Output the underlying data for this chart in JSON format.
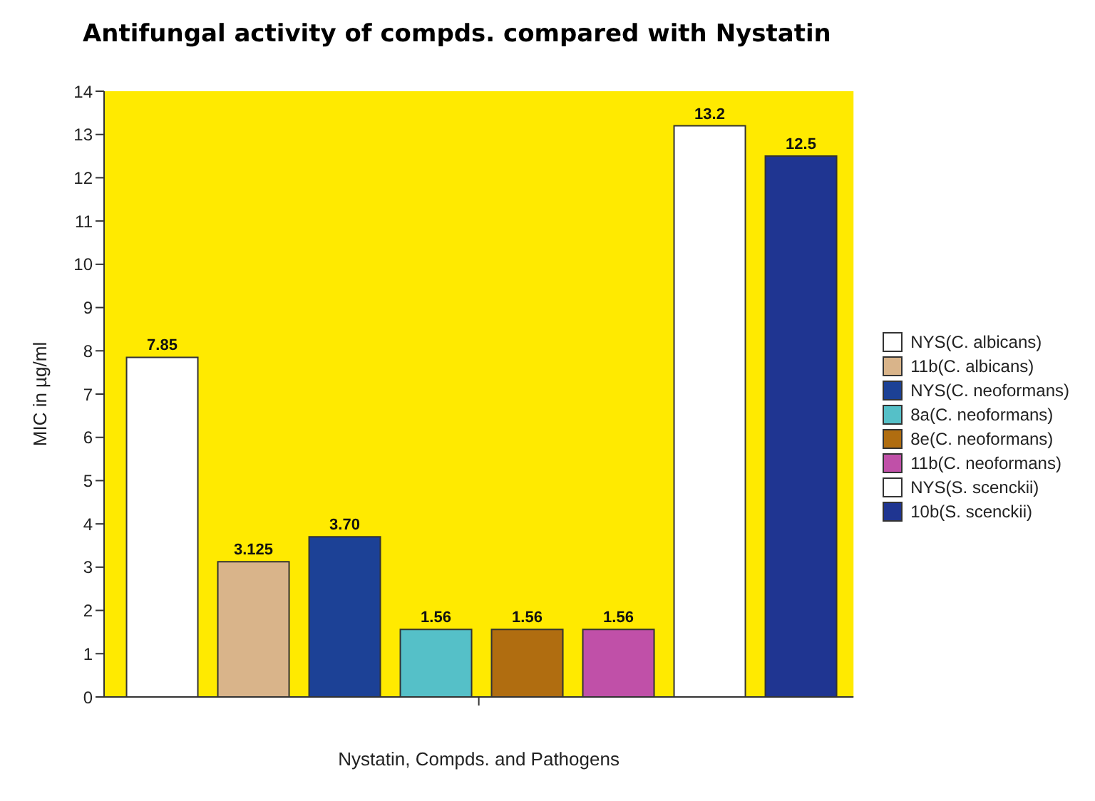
{
  "chart_data": {
    "type": "bar",
    "title": "Antifungal activity of compds. compared with Nystatin",
    "xlabel": "Nystatin, Compds. and Pathogens",
    "ylabel": "MIC in µg/ml",
    "categories": [
      null
    ],
    "series": [
      {
        "name": "NYS(C. albicans)",
        "color": "#ffffff",
        "values": [
          7.85
        ],
        "value_labels": [
          "7.85"
        ]
      },
      {
        "name": "11b(C. albicans)",
        "color": "#d9b48a",
        "values": [
          3.125
        ],
        "value_labels": [
          "3.125"
        ]
      },
      {
        "name": "NYS(C. neoformans)",
        "color": "#1c4196",
        "values": [
          3.7
        ],
        "value_labels": [
          "3.70"
        ]
      },
      {
        "name": "8a(C. neoformans)",
        "color": "#55c0c8",
        "values": [
          1.56
        ],
        "value_labels": [
          "1.56"
        ]
      },
      {
        "name": "8e(C. neoformans)",
        "color": "#b06d10",
        "values": [
          1.56
        ],
        "value_labels": [
          "1.56"
        ]
      },
      {
        "name": "11b(C. neoformans)",
        "color": "#c050a8",
        "values": [
          1.56
        ],
        "value_labels": [
          "1.56"
        ]
      },
      {
        "name": "NYS(S. scenckii)",
        "color": "#ffffff",
        "values": [
          13.2
        ],
        "value_labels": [
          "13.2"
        ]
      },
      {
        "name": "10b(S. scenckii)",
        "color": "#1f3591",
        "values": [
          12.5
        ],
        "value_labels": [
          "12.5"
        ]
      }
    ],
    "ylim": [
      0,
      14
    ],
    "yticks": [
      0,
      1,
      2,
      3,
      4,
      5,
      6,
      7,
      8,
      9,
      10,
      11,
      12,
      13,
      14
    ],
    "grid": false,
    "legend": "right"
  }
}
